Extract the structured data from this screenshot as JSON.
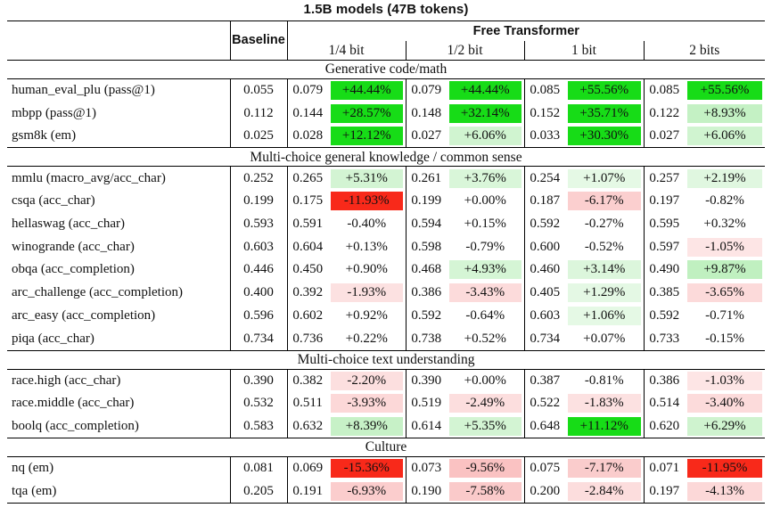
{
  "title": "1.5B models (47B tokens)",
  "header": {
    "baseline_label": "Baseline",
    "group_label": "Free Transformer",
    "variants": [
      "1/4 bit",
      "1/2 bit",
      "1 bit",
      "2 bits"
    ]
  },
  "colors": {
    "full_green": "#17dc17",
    "full_red": "#f8291a",
    "light_green_rgb": "30,200,30",
    "light_red_rgb": "235,30,30",
    "rule": "#000000",
    "text": "#111111"
  },
  "color_rules": {
    "no_shade_below_abs_pct": 1.0,
    "full_shade_at_abs_pct": 10.5
  },
  "sections": [
    {
      "name": "Generative code/math",
      "rows": [
        {
          "label": "human_eval_plu (pass@1)",
          "baseline": "0.055",
          "cells": [
            {
              "v": "0.079",
              "p": "+44.44%"
            },
            {
              "v": "0.079",
              "p": "+44.44%"
            },
            {
              "v": "0.085",
              "p": "+55.56%"
            },
            {
              "v": "0.085",
              "p": "+55.56%"
            }
          ]
        },
        {
          "label": "mbpp (pass@1)",
          "baseline": "0.112",
          "cells": [
            {
              "v": "0.144",
              "p": "+28.57%"
            },
            {
              "v": "0.148",
              "p": "+32.14%"
            },
            {
              "v": "0.152",
              "p": "+35.71%"
            },
            {
              "v": "0.122",
              "p": "+8.93%"
            }
          ]
        },
        {
          "label": "gsm8k (em)",
          "baseline": "0.025",
          "cells": [
            {
              "v": "0.028",
              "p": "+12.12%"
            },
            {
              "v": "0.027",
              "p": "+6.06%"
            },
            {
              "v": "0.033",
              "p": "+30.30%"
            },
            {
              "v": "0.027",
              "p": "+6.06%"
            }
          ]
        }
      ]
    },
    {
      "name": "Multi-choice general knowledge / common sense",
      "rows": [
        {
          "label": "mmlu (macro_avg/acc_char)",
          "baseline": "0.252",
          "cells": [
            {
              "v": "0.265",
              "p": "+5.31%"
            },
            {
              "v": "0.261",
              "p": "+3.76%"
            },
            {
              "v": "0.254",
              "p": "+1.07%"
            },
            {
              "v": "0.257",
              "p": "+2.19%"
            }
          ]
        },
        {
          "label": "csqa (acc_char)",
          "baseline": "0.199",
          "cells": [
            {
              "v": "0.175",
              "p": "-11.93%"
            },
            {
              "v": "0.199",
              "p": "+0.00%"
            },
            {
              "v": "0.187",
              "p": "-6.17%"
            },
            {
              "v": "0.197",
              "p": "-0.82%"
            }
          ]
        },
        {
          "label": "hellaswag (acc_char)",
          "baseline": "0.593",
          "cells": [
            {
              "v": "0.591",
              "p": "-0.40%"
            },
            {
              "v": "0.594",
              "p": "+0.15%"
            },
            {
              "v": "0.592",
              "p": "-0.27%"
            },
            {
              "v": "0.595",
              "p": "+0.32%"
            }
          ]
        },
        {
          "label": "winogrande (acc_char)",
          "baseline": "0.603",
          "cells": [
            {
              "v": "0.604",
              "p": "+0.13%"
            },
            {
              "v": "0.598",
              "p": "-0.79%"
            },
            {
              "v": "0.600",
              "p": "-0.52%"
            },
            {
              "v": "0.597",
              "p": "-1.05%"
            }
          ]
        },
        {
          "label": "obqa (acc_completion)",
          "baseline": "0.446",
          "cells": [
            {
              "v": "0.450",
              "p": "+0.90%"
            },
            {
              "v": "0.468",
              "p": "+4.93%"
            },
            {
              "v": "0.460",
              "p": "+3.14%"
            },
            {
              "v": "0.490",
              "p": "+9.87%"
            }
          ]
        },
        {
          "label": "arc_challenge (acc_completion)",
          "baseline": "0.400",
          "cells": [
            {
              "v": "0.392",
              "p": "-1.93%"
            },
            {
              "v": "0.386",
              "p": "-3.43%"
            },
            {
              "v": "0.405",
              "p": "+1.29%"
            },
            {
              "v": "0.385",
              "p": "-3.65%"
            }
          ]
        },
        {
          "label": "arc_easy (acc_completion)",
          "baseline": "0.596",
          "cells": [
            {
              "v": "0.602",
              "p": "+0.92%"
            },
            {
              "v": "0.592",
              "p": "-0.64%"
            },
            {
              "v": "0.603",
              "p": "+1.06%"
            },
            {
              "v": "0.592",
              "p": "-0.71%"
            }
          ]
        },
        {
          "label": "piqa (acc_char)",
          "baseline": "0.734",
          "cells": [
            {
              "v": "0.736",
              "p": "+0.22%"
            },
            {
              "v": "0.738",
              "p": "+0.52%"
            },
            {
              "v": "0.734",
              "p": "+0.07%"
            },
            {
              "v": "0.733",
              "p": "-0.15%"
            }
          ]
        }
      ]
    },
    {
      "name": "Multi-choice text understanding",
      "rows": [
        {
          "label": "race.high (acc_char)",
          "baseline": "0.390",
          "cells": [
            {
              "v": "0.382",
              "p": "-2.20%"
            },
            {
              "v": "0.390",
              "p": "+0.00%"
            },
            {
              "v": "0.387",
              "p": "-0.81%"
            },
            {
              "v": "0.386",
              "p": "-1.03%"
            }
          ]
        },
        {
          "label": "race.middle (acc_char)",
          "baseline": "0.532",
          "cells": [
            {
              "v": "0.511",
              "p": "-3.93%"
            },
            {
              "v": "0.519",
              "p": "-2.49%"
            },
            {
              "v": "0.522",
              "p": "-1.83%"
            },
            {
              "v": "0.514",
              "p": "-3.40%"
            }
          ]
        },
        {
          "label": "boolq (acc_completion)",
          "baseline": "0.583",
          "cells": [
            {
              "v": "0.632",
              "p": "+8.39%"
            },
            {
              "v": "0.614",
              "p": "+5.35%"
            },
            {
              "v": "0.648",
              "p": "+11.12%"
            },
            {
              "v": "0.620",
              "p": "+6.29%"
            }
          ]
        }
      ]
    },
    {
      "name": "Culture",
      "rows": [
        {
          "label": "nq (em)",
          "baseline": "0.081",
          "cells": [
            {
              "v": "0.069",
              "p": "-15.36%"
            },
            {
              "v": "0.073",
              "p": "-9.56%"
            },
            {
              "v": "0.075",
              "p": "-7.17%"
            },
            {
              "v": "0.071",
              "p": "-11.95%"
            }
          ]
        },
        {
          "label": "tqa (em)",
          "baseline": "0.205",
          "cells": [
            {
              "v": "0.191",
              "p": "-6.93%"
            },
            {
              "v": "0.190",
              "p": "-7.58%"
            },
            {
              "v": "0.200",
              "p": "-2.84%"
            },
            {
              "v": "0.197",
              "p": "-4.13%"
            }
          ]
        }
      ]
    }
  ]
}
